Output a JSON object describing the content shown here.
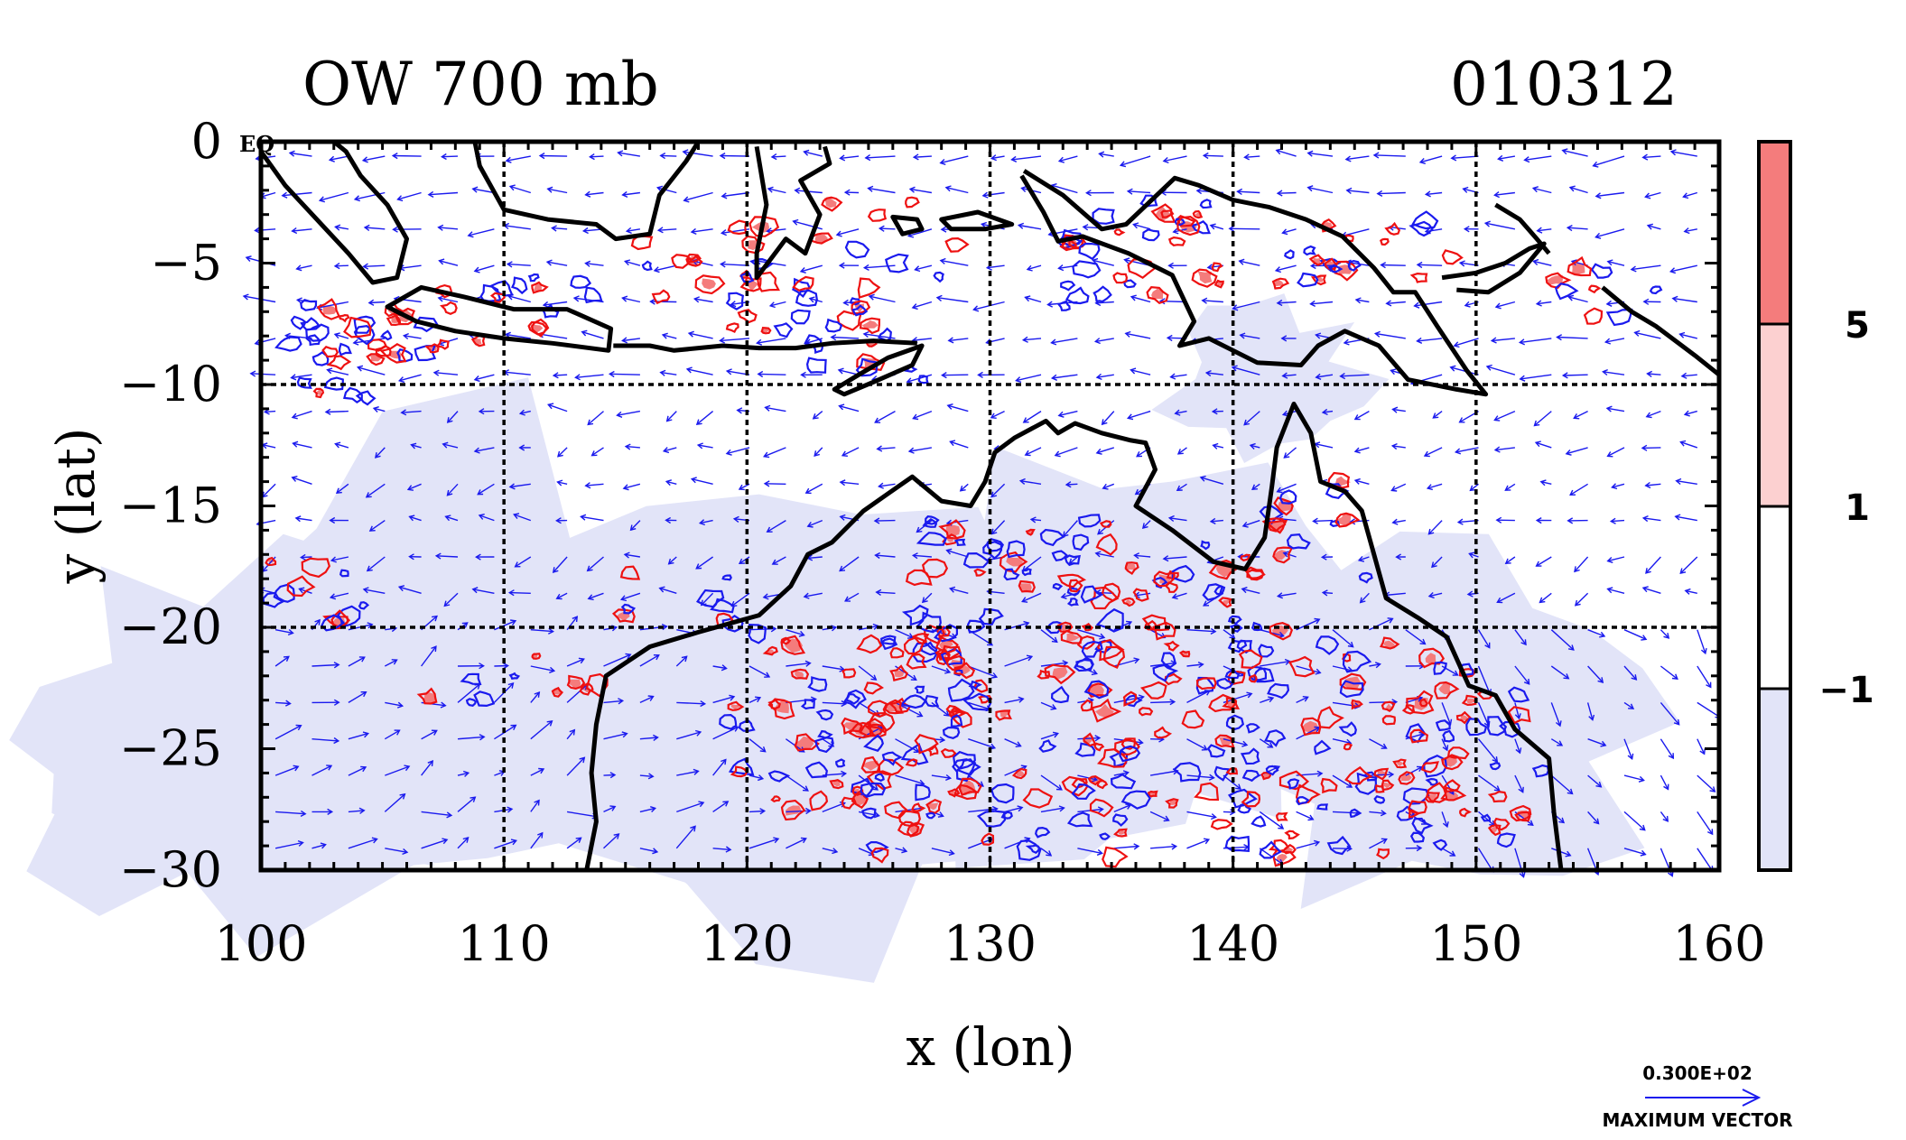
{
  "title_left": "OW 700 mb",
  "title_right": "010312",
  "eq_label": "EQ",
  "chart_data": {
    "type": "map",
    "xlabel": "x (lon)",
    "ylabel": "y (lat)",
    "xlim": [
      100,
      160
    ],
    "ylim": [
      -30,
      0
    ],
    "x_ticks": [
      100,
      110,
      120,
      130,
      140,
      150,
      160
    ],
    "y_ticks": [
      0,
      -5,
      -10,
      -15,
      -20,
      -25,
      -30
    ],
    "x_tick_labels": [
      "100",
      "110",
      "120",
      "130",
      "140",
      "150",
      "160"
    ],
    "y_tick_labels": [
      "0",
      "−5",
      "−10",
      "−15",
      "−20",
      "−25",
      "−30"
    ],
    "gridlines_lon": [
      110,
      120,
      130,
      140,
      150
    ],
    "gridlines_lat": [
      -10,
      -20
    ],
    "colorbar": {
      "levels": [
        "5",
        "1",
        "−1"
      ],
      "colors": [
        "#f47c7c",
        "#fcd0d0",
        "#ffffff",
        "#e2e4f8"
      ]
    },
    "contour_colors": {
      "positive": "#ee1111",
      "negative": "#1a1aee"
    },
    "coastline_color": "#000000",
    "vector_color": "#1a1aee",
    "vector_legend": {
      "value_label": "0.300E+02",
      "caption": "MAXIMUM VECTOR"
    }
  }
}
